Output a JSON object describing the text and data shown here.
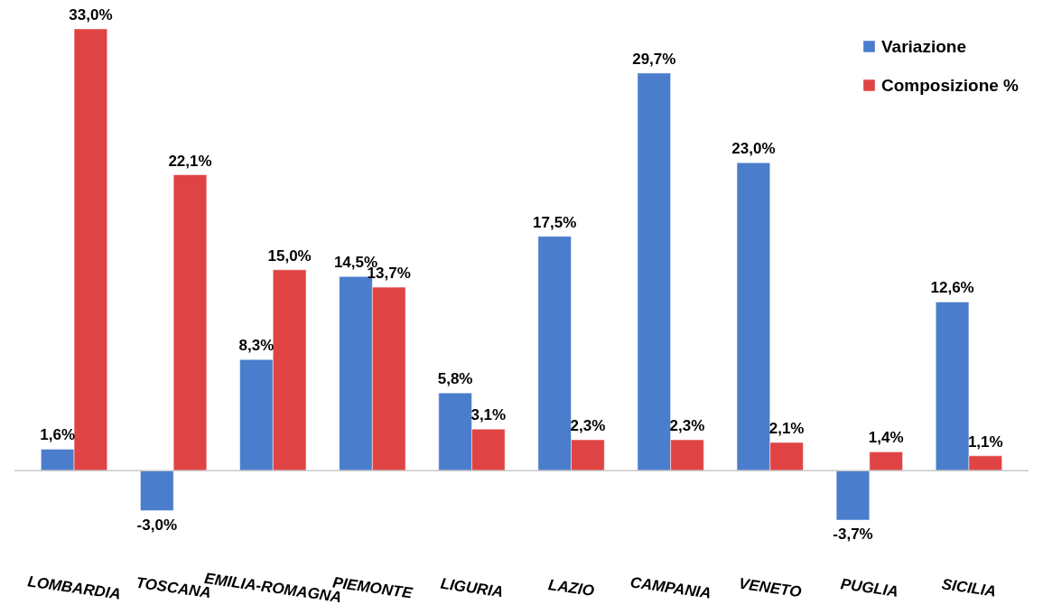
{
  "chart_data": {
    "type": "bar",
    "categories": [
      "LOMBARDIA",
      "TOSCANA",
      "EMILIA-ROMAGNA",
      "PIEMONTE",
      "LIGURIA",
      "LAZIO",
      "CAMPANIA",
      "VENETO",
      "PUGLIA",
      "SICILIA"
    ],
    "series": [
      {
        "name": "Variazione",
        "color": "#4a7dcc",
        "values": [
          1.6,
          -3.0,
          8.3,
          14.5,
          5.8,
          17.5,
          29.7,
          23.0,
          -3.7,
          12.6
        ],
        "value_labels": [
          "1,6%",
          "-3,0%",
          "8,3%",
          "14,5%",
          "5,8%",
          "17,5%",
          "29,7%",
          "23,0%",
          "-3,7%",
          "12,6%"
        ]
      },
      {
        "name": "Composizione %",
        "color": "#e04343",
        "values": [
          33.0,
          22.1,
          15.0,
          13.7,
          3.1,
          2.3,
          2.3,
          2.1,
          1.4,
          1.1
        ],
        "value_labels": [
          "33,0%",
          "22,1%",
          "15,0%",
          "13,7%",
          "3,1%",
          "2,3%",
          "2,3%",
          "2,1%",
          "1,4%",
          "1,1%"
        ]
      }
    ],
    "legend": "top right"
  }
}
